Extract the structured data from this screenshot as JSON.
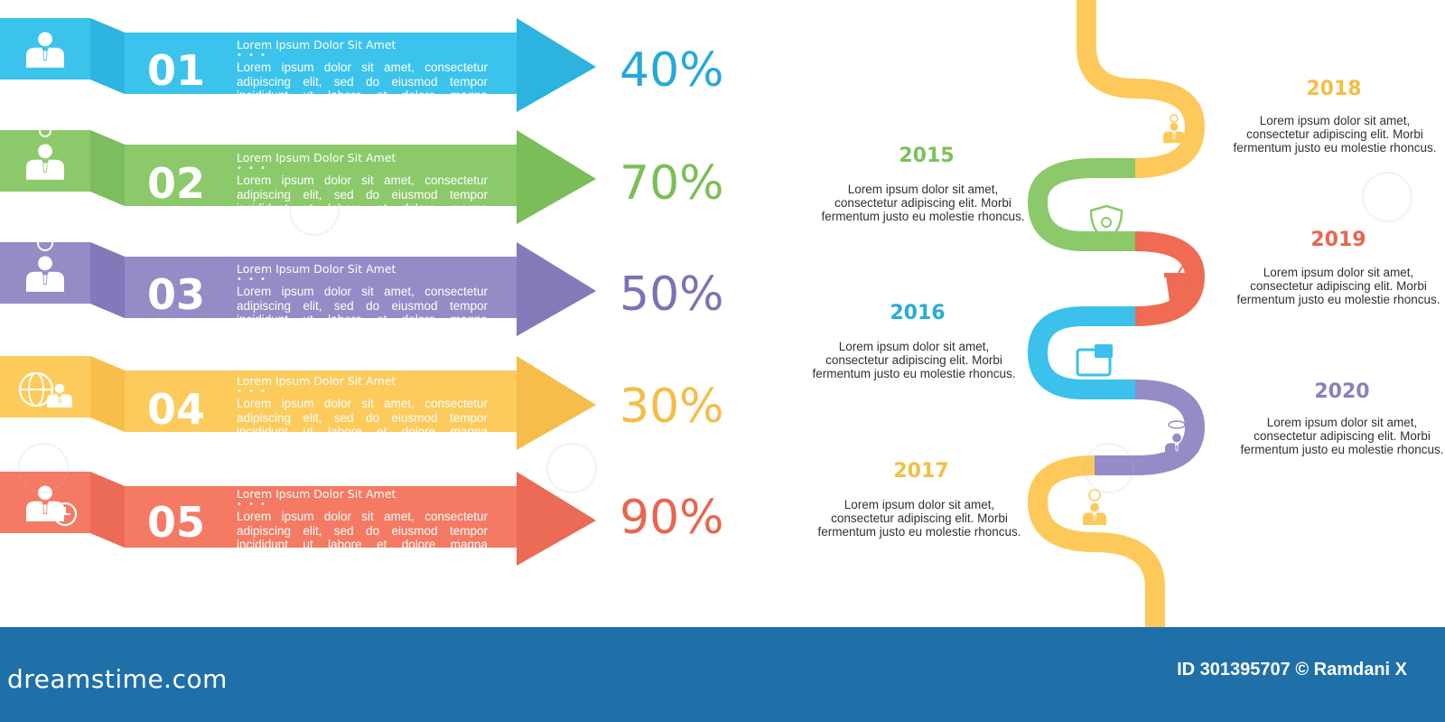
{
  "items": [
    {
      "number": "01",
      "title": "Lorem Ipsum Dolor Sit Amet",
      "dots": "• • •",
      "body": "Lorem ipsum dolor sit amet, consectetur adipiscing elit, sed do eiusmod tempor incididunt ut labore et dolore magna",
      "percent": 0.4,
      "percent_label": "40%",
      "icon": "businessman-icon",
      "colors": {
        "light": "#3cc3ec",
        "dark": "#1fa6d6",
        "tab": "#2db4e0",
        "text": "#27a8d9"
      }
    },
    {
      "number": "02",
      "title": "Lorem Ipsum Dolor Sit Amet",
      "dots": "• • •",
      "body": "Lorem ipsum dolor sit amet, consectetur adipiscing elit, sed do eiusmod tempor incididunt ut labore et dolore magna",
      "percent": 0.7,
      "percent_label": "70%",
      "icon": "idea-businessman-icon",
      "colors": {
        "light": "#8bc96a",
        "dark": "#6db24b",
        "tab": "#7dbd5d",
        "text": "#7abf57"
      }
    },
    {
      "number": "03",
      "title": "Lorem Ipsum Dolor Sit Amet",
      "dots": "• • •",
      "body": "Lorem ipsum dolor sit amet, consectetur adipiscing elit, sed do eiusmod tempor incididunt ut labore et dolore magna",
      "percent": 0.5,
      "percent_label": "50%",
      "icon": "money-businessman-icon",
      "colors": {
        "light": "#958bc6",
        "dark": "#786cb1",
        "tab": "#8379ba",
        "text": "#7f70b5"
      }
    },
    {
      "number": "04",
      "title": "Lorem Ipsum Dolor Sit Amet",
      "dots": "• • •",
      "body": "Lorem ipsum dolor sit amet, consectetur adipiscing elit, sed do eiusmod tempor incididunt ut labore et dolore magna",
      "percent": 0.3,
      "percent_label": "30%",
      "icon": "globe-businessman-icon",
      "colors": {
        "light": "#fdcb5c",
        "dark": "#f0b23d",
        "tab": "#f7be4a",
        "text": "#f4bd46"
      }
    },
    {
      "number": "05",
      "title": "Lorem Ipsum Dolor Sit Amet",
      "dots": "• • •",
      "body": "Lorem ipsum dolor sit amet, consectetur adipiscing elit, sed do eiusmod tempor incididunt ut labore et dolore magna",
      "percent": 0.9,
      "percent_label": "90%",
      "icon": "clock-businessman-icon",
      "colors": {
        "light": "#f47a64",
        "dark": "#e35f4c",
        "tab": "#ec6b56",
        "text": "#e8654f"
      }
    }
  ],
  "timeline": [
    {
      "year": "2015",
      "text": "Lorem ipsum dolor sit amet, consectetur adipiscing elit. Morbi fermentum justo eu molestie rhoncus.",
      "color": "#7cc05c",
      "side": "left",
      "icon": "shield-copyright-icon"
    },
    {
      "year": "2016",
      "text": "Lorem ipsum dolor sit amet, consectetur adipiscing elit. Morbi fermentum justo eu molestie rhoncus.",
      "color": "#29abd9",
      "side": "left",
      "icon": "wallet-icon"
    },
    {
      "year": "2017",
      "text": "Lorem ipsum dolor sit amet, consectetur adipiscing elit. Morbi fermentum justo eu molestie rhoncus.",
      "color": "#f4bd46",
      "side": "left",
      "icon": "money-businessman-icon"
    },
    {
      "year": "2018",
      "text": "Lorem ipsum dolor sit amet, consectetur adipiscing elit. Morbi fermentum justo eu molestie rhoncus.",
      "color": "#f4bd46",
      "side": "right",
      "icon": "idea-businessman-icon"
    },
    {
      "year": "2019",
      "text": "Lorem ipsum dolor sit amet, consectetur adipiscing elit. Morbi fermentum justo eu molestie rhoncus.",
      "color": "#e8654f",
      "side": "right",
      "icon": "drink-cup-icon"
    },
    {
      "year": "2020",
      "text": "Lorem ipsum dolor sit amet, consectetur adipiscing elit. Morbi fermentum justo eu molestie rhoncus.",
      "color": "#8a7fbd",
      "side": "right",
      "icon": "atom-businessman-icon"
    }
  ],
  "footer": {
    "brand": "dreamstime.com",
    "credit": "ID 301395707 © Ramdani X",
    "color": "#1f6fa9"
  },
  "path_colors": {
    "yellow": "#fdc95a",
    "green": "#8bc96a",
    "red": "#ef6b53",
    "blue": "#3cc0ec",
    "purple": "#958bc6"
  }
}
